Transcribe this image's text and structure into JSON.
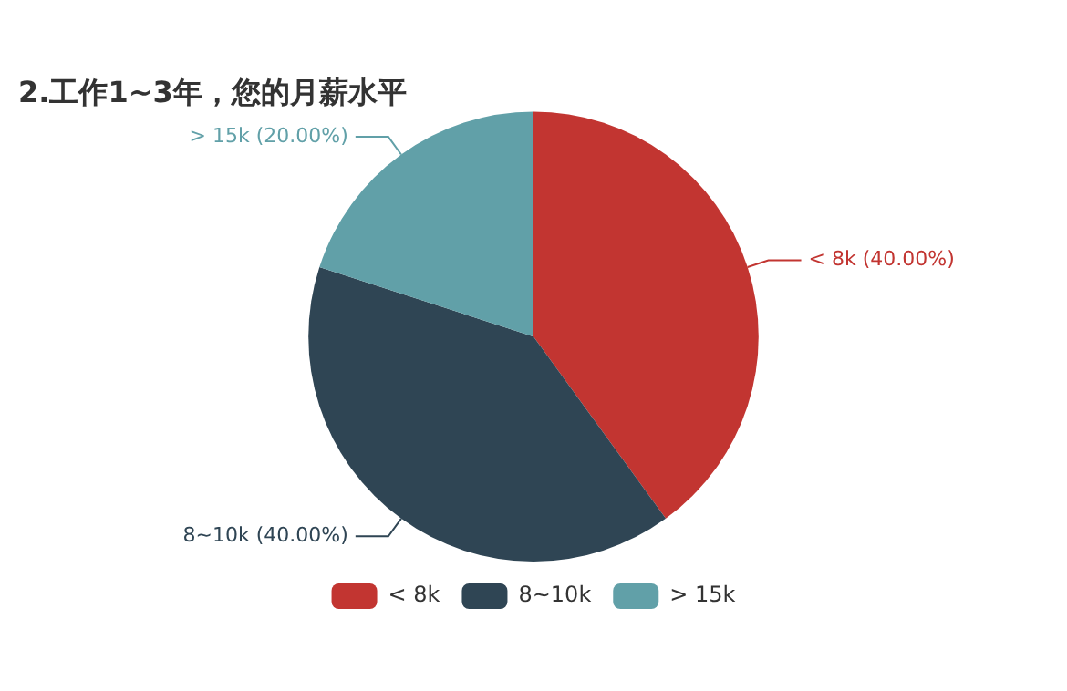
{
  "chart_data": {
    "type": "pie",
    "title": "2.工作1~3年，您的月薪水平",
    "categories": [
      "< 8k",
      "8~10k",
      "> 15k"
    ],
    "values": [
      40,
      40,
      20
    ],
    "colors": [
      "#c23531",
      "#2f4554",
      "#61a0a8"
    ],
    "value_labels": [
      "< 8k (40.00%)",
      "8~10k (40.00%)",
      "> 15k (20.00%)"
    ],
    "legend": "bottom"
  }
}
